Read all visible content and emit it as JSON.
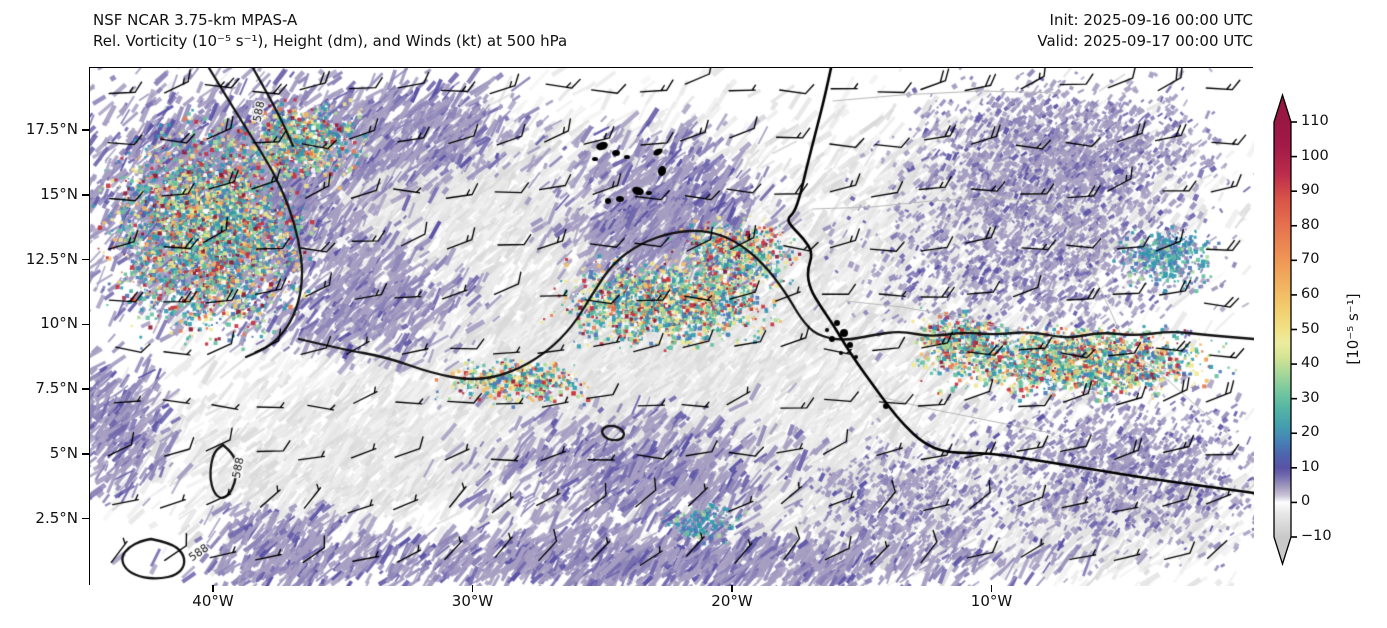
{
  "header": {
    "title": "NSF NCAR 3.75-km MPAS-A",
    "subtitle": "Rel. Vorticity (10⁻⁵ s⁻¹), Height (dm), and Winds (kt) at 500 hPa",
    "init_label": "Init: 2025-09-16 00:00 UTC",
    "valid_label": "Valid: 2025-09-17 00:00 UTC"
  },
  "chart_data": {
    "type": "heatmap",
    "title": "NSF NCAR 3.75-km MPAS-A",
    "subtitle": "Rel. Vorticity (10⁻⁵ s⁻¹), Height (dm), and Winds (kt) at 500 hPa",
    "init_time": "2025-09-16 00:00 UTC",
    "valid_time": "2025-09-17 00:00 UTC",
    "field": "500 hPa relative vorticity (10⁻⁵ s⁻¹), geopotential height (dm), winds (kt)",
    "projection": "lat-lon, West Africa / East Atlantic sector",
    "x_axis": {
      "range_lon": [
        -44.8,
        0.1
      ],
      "ticks": [
        {
          "value": -40,
          "label": "40°W"
        },
        {
          "value": -30,
          "label": "30°W"
        },
        {
          "value": -20,
          "label": "20°W"
        },
        {
          "value": -10,
          "label": "10°W"
        }
      ]
    },
    "y_axis": {
      "range_lat": [
        -0.1,
        19.9
      ],
      "ticks": [
        {
          "value": 17.5,
          "label": "17.5°N"
        },
        {
          "value": 15,
          "label": "15°N"
        },
        {
          "value": 12.5,
          "label": "12.5°N"
        },
        {
          "value": 10,
          "label": "10°N"
        },
        {
          "value": 7.5,
          "label": "7.5°N"
        },
        {
          "value": 5,
          "label": "5°N"
        },
        {
          "value": 2.5,
          "label": "2.5°N"
        }
      ]
    },
    "colorbar": {
      "unit": "[10⁻⁵ s⁻¹]",
      "ticks": [
        110,
        100,
        90,
        80,
        70,
        60,
        50,
        40,
        30,
        20,
        10,
        0,
        -10
      ],
      "range": [
        -10,
        110
      ],
      "extend": "both",
      "stops": [
        {
          "v": -10,
          "c": "#c9c9c9"
        },
        {
          "v": -3,
          "c": "#e8e8e8"
        },
        {
          "v": 0,
          "c": "#fdfdfd"
        },
        {
          "v": 2,
          "c": "#c9c4d6"
        },
        {
          "v": 5,
          "c": "#9a92bb"
        },
        {
          "v": 8,
          "c": "#6e66ac"
        },
        {
          "v": 10,
          "c": "#5a52a6"
        },
        {
          "v": 14,
          "c": "#4c66ae"
        },
        {
          "v": 18,
          "c": "#4683b6"
        },
        {
          "v": 22,
          "c": "#459dae"
        },
        {
          "v": 27,
          "c": "#53b4a4"
        },
        {
          "v": 32,
          "c": "#74c79e"
        },
        {
          "v": 37,
          "c": "#a5d69a"
        },
        {
          "v": 42,
          "c": "#d4e494"
        },
        {
          "v": 46,
          "c": "#ecec9e"
        },
        {
          "v": 50,
          "c": "#f1e187"
        },
        {
          "v": 55,
          "c": "#f2d171"
        },
        {
          "v": 60,
          "c": "#f2bd66"
        },
        {
          "v": 70,
          "c": "#ef9756"
        },
        {
          "v": 80,
          "c": "#e5714e"
        },
        {
          "v": 88,
          "c": "#d85248"
        },
        {
          "v": 95,
          "c": "#bb2c4c"
        },
        {
          "v": 103,
          "c": "#a31a48"
        },
        {
          "v": 110,
          "c": "#991743"
        }
      ]
    },
    "contours": {
      "field": "geopotential height (dm)",
      "labeled_value": 588,
      "labels": [
        {
          "text": "588",
          "lon": -38.3,
          "lat": 18.2,
          "rot": -78
        },
        {
          "text": "588",
          "lon": -39.1,
          "lat": 4.45,
          "rot": -78
        },
        {
          "text": "588",
          "lon": -40.65,
          "lat": 1.2,
          "rot": -35
        }
      ]
    },
    "wind_barbs": {
      "units": "kt",
      "prevailing_direction": "easterly to northeasterly",
      "typical_speed_kt": [
        5,
        25
      ]
    },
    "high_vorticity_regions": [
      {
        "name": "west-atlantic-disturbance",
        "clon": -40.3,
        "clat": 13.6,
        "rx": 4.6,
        "ry": 5.0,
        "n": 3000,
        "peak": ">110"
      },
      {
        "name": "west-atlantic-north-lobe",
        "clon": -36.6,
        "clat": 17.1,
        "rx": 2.7,
        "ry": 1.9,
        "n": 650,
        "peak": "60"
      },
      {
        "name": "easterly-wave-20W",
        "clon": -22.6,
        "clat": 10.9,
        "rx": 5.0,
        "ry": 2.1,
        "n": 1700,
        "peak": ">110"
      },
      {
        "name": "easterly-wave-arc",
        "clon": -19.9,
        "clat": 12.7,
        "rx": 2.7,
        "ry": 1.7,
        "n": 550,
        "peak": "90"
      },
      {
        "name": "wave-axis-west-ext",
        "clon": -28.4,
        "clat": 7.85,
        "rx": 3.7,
        "ry": 1.1,
        "n": 420,
        "peak": "40"
      },
      {
        "name": "guinea-coast-band",
        "clon": -6.8,
        "clat": 8.6,
        "rx": 6.4,
        "ry": 1.6,
        "n": 1800,
        "peak": "100"
      },
      {
        "name": "guinea-band-west",
        "clon": -11.4,
        "clat": 9.4,
        "rx": 2.1,
        "ry": 1.35,
        "n": 450,
        "peak": "60"
      },
      {
        "name": "sahel-patch",
        "clon": -3.3,
        "clat": 12.7,
        "rx": 2.3,
        "ry": 1.5,
        "n": 300,
        "peak": "40"
      },
      {
        "name": "itcz-speckle",
        "clon": -21.2,
        "clat": 2.4,
        "rx": 1.9,
        "ry": 1.0,
        "n": 160,
        "peak": "30"
      }
    ],
    "geography": [
      "West African coastline",
      "Cape Verde Islands",
      "country borders (thin gray)"
    ]
  },
  "style": {
    "shade_purple": "#a39cc0",
    "shade_purple_dark": "#5a52a6",
    "contour_color": "#111111",
    "coast_color": "#000000",
    "border_color": "#b8b8b8"
  }
}
